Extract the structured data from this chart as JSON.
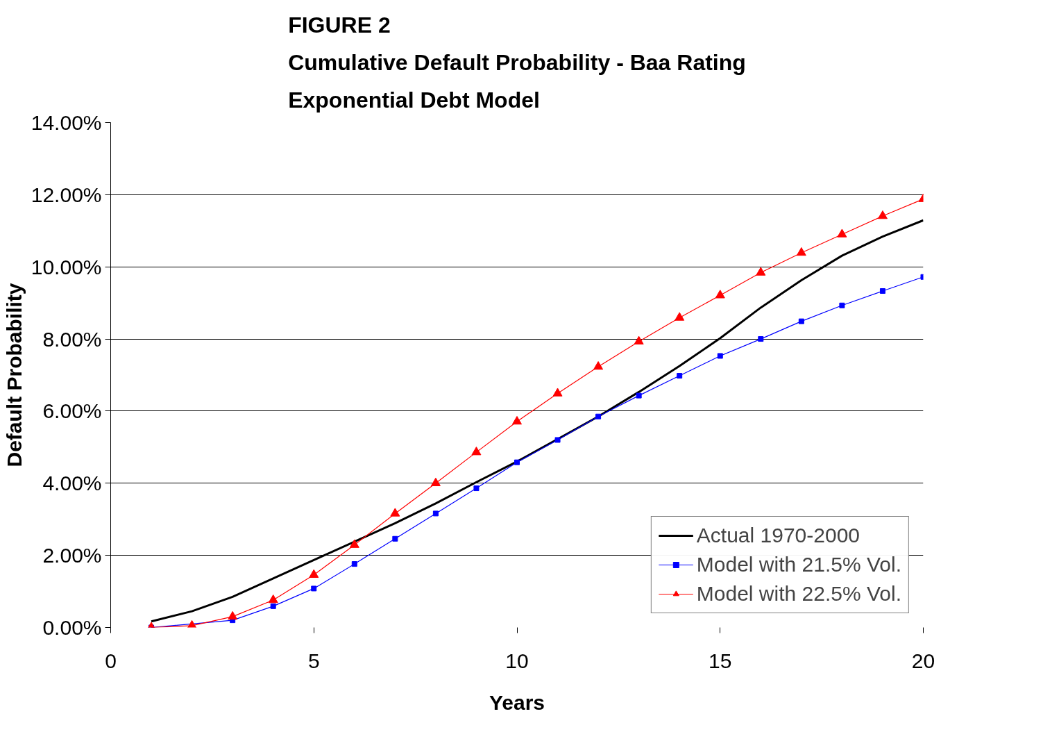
{
  "chart_data": {
    "type": "line",
    "title": "FIGURE 2\nCumulative Default Probability - Baa Rating\nExponential Debt Model",
    "xlabel": "Years",
    "ylabel": "Default Probability",
    "x": [
      1,
      2,
      3,
      4,
      5,
      6,
      7,
      8,
      9,
      10,
      11,
      12,
      13,
      14,
      15,
      16,
      17,
      18,
      19,
      20
    ],
    "series": [
      {
        "name": "Actual 1970-2000",
        "color": "#000000",
        "marker": "none",
        "values": [
          0.17,
          0.45,
          0.85,
          1.36,
          1.87,
          2.38,
          2.89,
          3.44,
          4.03,
          4.6,
          5.22,
          5.85,
          6.53,
          7.25,
          8.02,
          8.87,
          9.63,
          10.31,
          10.84,
          11.29
        ]
      },
      {
        "name": "Model with 21.5% Vol.",
        "color": "#0000ff",
        "marker": "square",
        "values": [
          0,
          null,
          0.2,
          0.59,
          1.08,
          1.76,
          2.46,
          3.16,
          3.86,
          4.58,
          5.2,
          5.85,
          6.43,
          6.98,
          7.53,
          8.0,
          8.49,
          8.93,
          9.33,
          9.72
        ]
      },
      {
        "name": "Model with 22.5% Vol.",
        "color": "#ff0000",
        "marker": "triangle",
        "values": [
          0,
          0.05,
          0.3,
          0.76,
          1.46,
          2.29,
          3.16,
          4.0,
          4.86,
          5.71,
          6.49,
          7.23,
          7.93,
          8.59,
          9.21,
          9.84,
          10.39,
          10.9,
          11.41,
          11.88
        ]
      }
    ],
    "xlim": [
      0,
      20
    ],
    "xticks": [
      0,
      5,
      10,
      15,
      20
    ],
    "ylim": [
      0,
      14
    ],
    "yticks": [
      {
        "value": 0,
        "label": "0.00%"
      },
      {
        "value": 2,
        "label": "2.00%"
      },
      {
        "value": 4,
        "label": "4.00%"
      },
      {
        "value": 6,
        "label": "6.00%"
      },
      {
        "value": 8,
        "label": "8.00%"
      },
      {
        "value": 10,
        "label": "10.00%"
      },
      {
        "value": 12,
        "label": "12.00%"
      },
      {
        "value": 14,
        "label": "14.00%"
      }
    ],
    "grid": "y",
    "legend": "bottom right",
    "line_style": "solid"
  }
}
